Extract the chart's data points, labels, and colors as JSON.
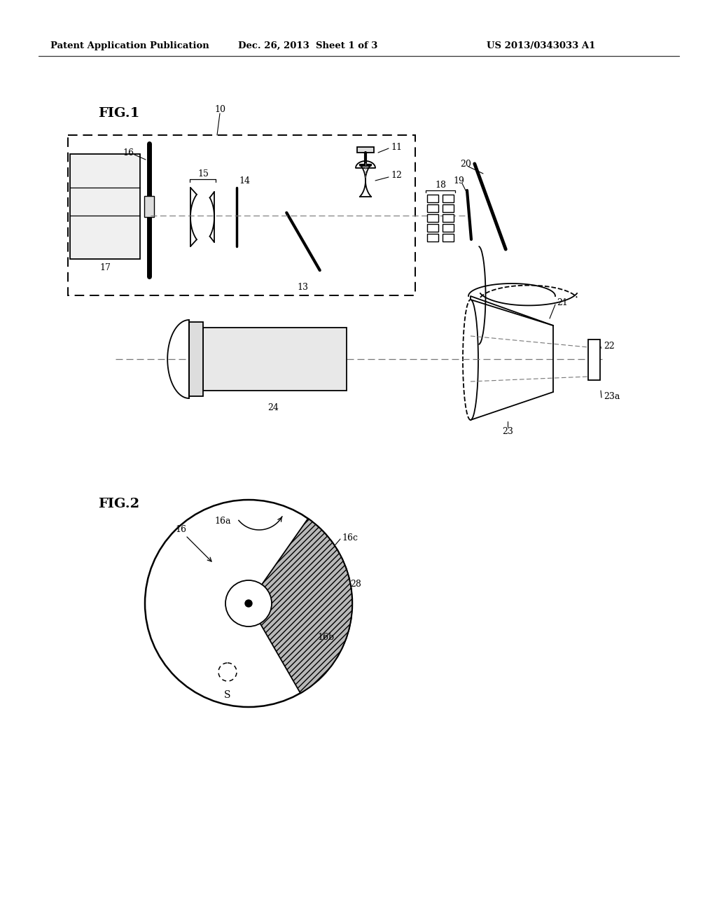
{
  "bg_color": "#ffffff",
  "header_left": "Patent Application Publication",
  "header_mid": "Dec. 26, 2013  Sheet 1 of 3",
  "header_right": "US 2013/0343033 A1",
  "fig1_label": "FIG.1",
  "fig2_label": "FIG.2",
  "lw": 1.3
}
